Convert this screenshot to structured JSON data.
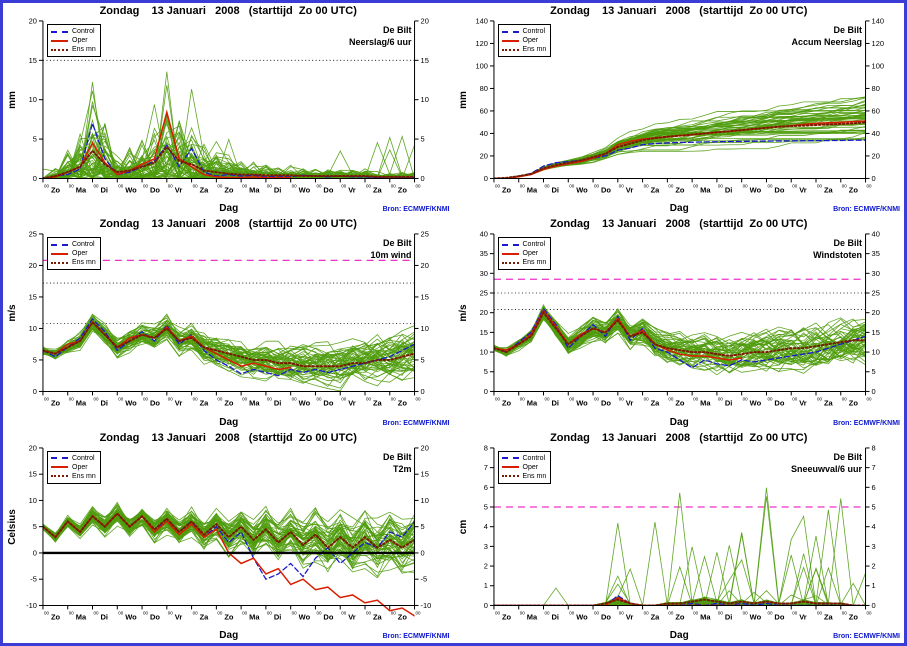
{
  "colors": {
    "control": "#1a1acc",
    "oper": "#d81e00",
    "ens_mean": "#7a1a00",
    "ensemble": "#4f9c0d",
    "threshold": "#ee30c8",
    "source_text": "#0b16d0",
    "frame": "#3b3bd6"
  },
  "chart_data": [
    {
      "type": "line",
      "title": "Zondag    13 Januari   2008   (starttijd  Zo 00 UTC)",
      "station": "De Bilt",
      "variable": "Neerslag/6 uur",
      "ylabel": "mm",
      "xlabel": "Dag",
      "source": "Bron: ECMWF/KNMI",
      "legend": [
        "Control",
        "Oper",
        "Ens mn"
      ],
      "ylim": [
        0,
        20
      ],
      "yticks": [
        0,
        5,
        10,
        15,
        20
      ],
      "dotted": [
        15
      ],
      "magenta": [],
      "zero_line": false,
      "clip_overflow": false,
      "hour_label": "00",
      "days": [
        "Zo",
        "Ma",
        "Di",
        "Wo",
        "Do",
        "Vr",
        "Za",
        "Zo",
        "Ma",
        "Di",
        "Wo",
        "Do",
        "Vr",
        "Za",
        "Zo"
      ],
      "ensemble": {
        "count": 50,
        "seed": 11,
        "gen": "precip"
      },
      "series": {
        "control": [
          0,
          0.3,
          0.5,
          1.2,
          7,
          2.5,
          0.5,
          0.8,
          1.5,
          2.2,
          4.2,
          1.5,
          3.8,
          0.8,
          0.3,
          0.5,
          0.3,
          0.4,
          0.2,
          0.3,
          0.2,
          0.4,
          0.3,
          0.2,
          0.3,
          0.2,
          0.2,
          0.1,
          0.2,
          0.1,
          0.1
        ],
        "oper": [
          0,
          0.2,
          0.8,
          1.5,
          4.5,
          2,
          0.5,
          1,
          1.8,
          2.5,
          8.4,
          2.5,
          1.5,
          0.5,
          0.2,
          0.1,
          0.1,
          0.2,
          0.1,
          0.1,
          0.1,
          null,
          null,
          null,
          null,
          null,
          null,
          null,
          null,
          null,
          null
        ],
        "ens_mean": [
          0,
          0.3,
          0.8,
          1.5,
          3.5,
          1.8,
          0.8,
          1,
          1.5,
          2,
          4,
          2.2,
          1.8,
          1,
          0.8,
          0.6,
          0.5,
          0.5,
          0.4,
          0.4,
          0.4,
          0.3,
          0.3,
          0.3,
          0.3,
          0.3,
          0.3,
          0.2,
          0.2,
          0.2,
          0.2
        ]
      }
    },
    {
      "type": "line",
      "title": "Zondag    13 Januari   2008   (starttijd  Zo 00 UTC)",
      "station": "De Bilt",
      "variable": "Accum Neerslag",
      "ylabel": "mm",
      "xlabel": "Dag",
      "source": "Bron: ECMWF/KNMI",
      "legend": [
        "Control",
        "Oper",
        "Ens mn"
      ],
      "ylim": [
        0,
        140
      ],
      "yticks": [
        0,
        20,
        40,
        60,
        80,
        100,
        120,
        140
      ],
      "dotted": [],
      "magenta": [],
      "zero_line": false,
      "clip_overflow": false,
      "hour_label": "00",
      "days": [
        "Zo",
        "Ma",
        "Di",
        "Wo",
        "Do",
        "Vr",
        "Za",
        "Zo",
        "Ma",
        "Di",
        "Wo",
        "Do",
        "Vr",
        "Za",
        "Zo"
      ],
      "ensemble": {
        "count": 50,
        "seed": 22,
        "gen": "accum"
      },
      "series": {
        "control": [
          0,
          0.5,
          2,
          4.5,
          11,
          14,
          15,
          16,
          18,
          20,
          25,
          27,
          30,
          31,
          31.5,
          32,
          32.2,
          32.4,
          32.6,
          32.8,
          33,
          33.1,
          33.2,
          33.3,
          33.4,
          33.5,
          33.6,
          33.7,
          33.8,
          33.9,
          34
        ],
        "oper": [
          0,
          0.3,
          1.5,
          3.5,
          8,
          11,
          13,
          15,
          18,
          22,
          30,
          33,
          35,
          36,
          37,
          38,
          39,
          40,
          41,
          42,
          43,
          44,
          45,
          46,
          47,
          48,
          49,
          49.5,
          50,
          50.5,
          51
        ],
        "ens_mean": [
          0,
          0.5,
          2,
          4,
          9,
          12,
          14,
          16,
          19,
          22,
          28,
          31,
          34,
          36,
          37,
          38,
          39,
          40,
          41,
          42,
          43,
          44,
          45,
          46,
          46.5,
          47,
          47.5,
          48,
          48.5,
          49,
          50
        ]
      }
    },
    {
      "type": "line",
      "title": "Zondag    13 Januari   2008   (starttijd  Zo 00 UTC)",
      "station": "De Bilt",
      "variable": "10m wind",
      "ylabel": "m/s",
      "xlabel": "Dag",
      "source": "Bron: ECMWF/KNMI",
      "legend": [
        "Control",
        "Oper",
        "Ens mn"
      ],
      "ylim": [
        0,
        25
      ],
      "yticks": [
        0,
        5,
        10,
        15,
        20,
        25
      ],
      "dotted": [
        10.8,
        17.2
      ],
      "magenta": [
        20.8
      ],
      "zero_line": false,
      "clip_overflow": false,
      "hour_label": "00",
      "days": [
        "Zo",
        "Ma",
        "Di",
        "Wo",
        "Do",
        "Vr",
        "Za",
        "Zo",
        "Ma",
        "Di",
        "Wo",
        "Do",
        "Vr",
        "Za",
        "Zo"
      ],
      "ensemble": {
        "count": 50,
        "seed": 33,
        "gen": "band",
        "s0": 0.5,
        "s1": 3.2
      },
      "series": {
        "control": [
          6.5,
          5.5,
          7,
          8.5,
          11.5,
          9.5,
          6.5,
          8,
          9.5,
          8,
          10.5,
          7.5,
          9,
          6.5,
          5,
          4,
          2.8,
          3.5,
          3,
          2.5,
          3.5,
          3,
          3.5,
          3,
          3.5,
          4,
          4.5,
          5,
          5.5,
          6.5,
          7.5
        ],
        "oper": [
          6.5,
          6,
          7.5,
          8,
          11,
          9,
          7,
          8.5,
          9,
          8.5,
          10.2,
          8,
          8.8,
          7,
          6,
          5,
          4,
          4.5,
          4,
          3.5,
          3.8,
          null,
          null,
          null,
          null,
          null,
          null,
          null,
          null,
          null,
          null
        ],
        "ens_mean": [
          6.5,
          6,
          7,
          8,
          11,
          9,
          7,
          8,
          9,
          8.5,
          10,
          8,
          8.5,
          7,
          6.5,
          6,
          5.5,
          5,
          5,
          4.5,
          4.5,
          4,
          4,
          4,
          4,
          4.5,
          4.5,
          5,
          5,
          5.5,
          6
        ]
      }
    },
    {
      "type": "line",
      "title": "Zondag    13 Januari   2008   (starttijd  Zo 00 UTC)",
      "station": "De Bilt",
      "variable": "Windstoten",
      "ylabel": "m/s",
      "xlabel": "Dag",
      "source": "Bron: ECMWF/KNMI",
      "legend": [
        "Control",
        "Oper",
        "Ens mn"
      ],
      "ylim": [
        0,
        40
      ],
      "yticks": [
        0,
        5,
        10,
        15,
        20,
        25,
        30,
        35,
        40
      ],
      "dotted": [
        20.8,
        25
      ],
      "magenta": [
        28.5
      ],
      "zero_line": false,
      "clip_overflow": false,
      "hour_label": "00",
      "days": [
        "Zo",
        "Ma",
        "Di",
        "Wo",
        "Do",
        "Vr",
        "Za",
        "Zo",
        "Ma",
        "Di",
        "Wo",
        "Do",
        "Vr",
        "Za",
        "Zo"
      ],
      "ensemble": {
        "count": 50,
        "seed": 44,
        "gen": "band",
        "s0": 0.8,
        "s1": 5
      },
      "series": {
        "control": [
          11,
          10,
          12.5,
          15,
          21,
          17,
          11,
          14,
          17,
          14,
          19,
          13,
          16,
          11,
          10,
          8,
          6,
          8,
          7,
          6.5,
          8,
          7.5,
          8,
          8.5,
          9,
          9.5,
          10,
          11,
          12,
          13,
          14
        ],
        "oper": [
          11,
          10.5,
          12,
          14.5,
          20.5,
          16.5,
          12,
          14.5,
          16,
          15,
          18.5,
          14,
          15.5,
          12,
          10.5,
          9.5,
          9,
          9,
          8.5,
          8,
          8.5,
          null,
          null,
          null,
          null,
          null,
          null,
          null,
          null,
          null,
          null
        ],
        "ens_mean": [
          11,
          10,
          12,
          14,
          20,
          16,
          12,
          14,
          16,
          15,
          18,
          14,
          15,
          12,
          11,
          10.5,
          10,
          10,
          9.5,
          9,
          9.5,
          10,
          10,
          10.5,
          11,
          11,
          11.5,
          12,
          12.5,
          13,
          13
        ]
      }
    },
    {
      "type": "line",
      "title": "Zondag    13 Januari   2008   (starttijd  Zo 00 UTC)",
      "station": "De Bilt",
      "variable": "T2m",
      "ylabel": "Celsius",
      "xlabel": "Dag",
      "source": "Bron: ECMWF/KNMI",
      "legend": [
        "Control",
        "Oper",
        "Ens mn"
      ],
      "ylim": [
        -10,
        20
      ],
      "yticks": [
        -10,
        -5,
        0,
        5,
        10,
        15,
        20
      ],
      "dotted": [],
      "magenta": [],
      "zero_line": true,
      "clip_overflow": true,
      "hour_label": "00",
      "days": [
        "Zo",
        "Ma",
        "Di",
        "Wo",
        "Do",
        "Vr",
        "Za",
        "Zo",
        "Ma",
        "Di",
        "Wo",
        "Do",
        "Vr",
        "Za",
        "Zo"
      ],
      "ensemble": {
        "count": 50,
        "seed": 55,
        "gen": "band",
        "s0": 0.4,
        "s1": 4.5
      },
      "series": {
        "control": [
          5,
          3,
          6,
          4,
          7,
          5,
          7.5,
          5,
          7,
          4,
          6.5,
          4,
          6,
          3,
          5,
          2,
          4,
          -1,
          -5,
          -4,
          -2,
          -4.5,
          -1,
          1,
          -2,
          0,
          2,
          1,
          4,
          3,
          6
        ],
        "oper": [
          5,
          3,
          6,
          4,
          7,
          5,
          7.5,
          5,
          7,
          4,
          6,
          3.5,
          5.5,
          3,
          4.5,
          0,
          -2,
          -1,
          -4,
          -3,
          -6,
          -5,
          -7,
          -6.5,
          -8.5,
          -8,
          -9.5,
          -9,
          -11,
          -10.5,
          -12
        ],
        "ens_mean": [
          5,
          3,
          6,
          4,
          7,
          5,
          7.5,
          5,
          7,
          4.5,
          6.5,
          4,
          6,
          3.5,
          5.5,
          3,
          5,
          2.5,
          4.5,
          2,
          4,
          1.5,
          3.5,
          1,
          3,
          1,
          3,
          1,
          2.5,
          1,
          2.5
        ]
      }
    },
    {
      "type": "line",
      "title": "Zondag    13 Januari   2008   (starttijd  Zo 00 UTC)",
      "station": "De Bilt",
      "variable": "Sneeuwval/6 uur",
      "ylabel": "cm",
      "xlabel": "Dag",
      "source": "Bron: ECMWF/KNMI",
      "legend": [
        "Control",
        "Oper",
        "Ens mn"
      ],
      "ylim": [
        0,
        8
      ],
      "yticks": [
        0,
        1,
        2,
        3,
        4,
        5,
        6,
        7,
        8
      ],
      "dotted": [],
      "magenta": [
        5
      ],
      "zero_line": false,
      "clip_overflow": false,
      "hour_label": "00",
      "days": [
        "Zo",
        "Ma",
        "Di",
        "Wo",
        "Do",
        "Vr",
        "Za",
        "Zo",
        "Ma",
        "Di",
        "Wo",
        "Do",
        "Vr",
        "Za",
        "Zo"
      ],
      "ensemble": {
        "count": 50,
        "seed": 66,
        "gen": "snow",
        "spike": 7
      },
      "series": {
        "control": [
          0,
          0,
          0,
          0,
          0,
          0,
          0,
          0,
          0,
          0,
          0.5,
          0.1,
          0,
          0,
          0,
          0,
          0.1,
          0,
          0.1,
          0,
          0.1,
          0,
          0.1,
          0,
          0,
          0,
          0,
          0,
          0,
          0,
          0
        ],
        "oper": [
          0,
          0,
          0,
          0,
          0,
          0,
          0,
          0,
          0,
          0,
          0.4,
          0.1,
          0,
          0,
          0,
          0,
          0,
          0,
          0,
          0,
          0,
          null,
          null,
          null,
          null,
          null,
          null,
          null,
          null,
          null,
          null
        ],
        "ens_mean": [
          0,
          0,
          0,
          0,
          0,
          0,
          0,
          0,
          0,
          0.1,
          0.3,
          0.1,
          0,
          0,
          0.1,
          0.1,
          0.2,
          0.3,
          0.2,
          0.1,
          0.2,
          0.1,
          0.2,
          0.1,
          0.1,
          0.2,
          0.1,
          0.1,
          0.1,
          0,
          0
        ]
      }
    }
  ]
}
